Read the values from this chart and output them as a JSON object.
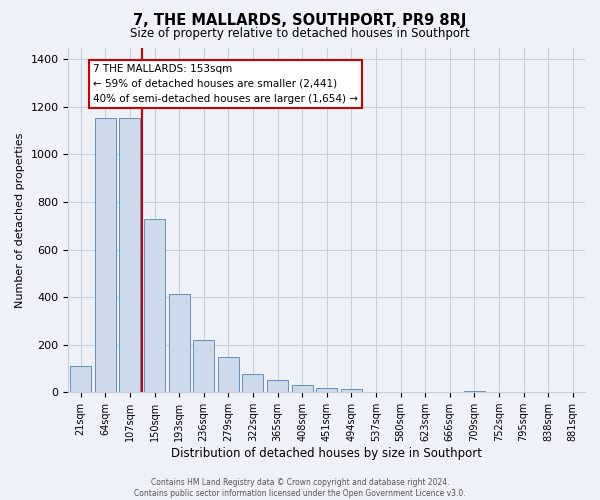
{
  "title": "7, THE MALLARDS, SOUTHPORT, PR9 8RJ",
  "subtitle": "Size of property relative to detached houses in Southport",
  "xlabel": "Distribution of detached houses by size in Southport",
  "ylabel": "Number of detached properties",
  "bar_labels": [
    "21sqm",
    "64sqm",
    "107sqm",
    "150sqm",
    "193sqm",
    "236sqm",
    "279sqm",
    "322sqm",
    "365sqm",
    "408sqm",
    "451sqm",
    "494sqm",
    "537sqm",
    "580sqm",
    "623sqm",
    "666sqm",
    "709sqm",
    "752sqm",
    "795sqm",
    "838sqm",
    "881sqm"
  ],
  "bar_values": [
    110,
    1155,
    1155,
    730,
    415,
    220,
    148,
    75,
    50,
    30,
    17,
    13,
    0,
    0,
    0,
    0,
    5,
    0,
    0,
    0,
    0
  ],
  "bar_color": "#ccdaea",
  "bar_edge_color": "#6090c0",
  "marker_index": 3,
  "marker_color": "#cc0000",
  "annotation_title": "7 THE MALLARDS: 153sqm",
  "annotation_line1": "← 59% of detached houses are smaller (2,441)",
  "annotation_line2": "40% of semi-detached houses are larger (1,654) →",
  "annotation_box_facecolor": "#ffffff",
  "annotation_box_edgecolor": "#cc0000",
  "footer_line1": "Contains HM Land Registry data © Crown copyright and database right 2024.",
  "footer_line2": "Contains public sector information licensed under the Open Government Licence v3.0.",
  "ylim": [
    0,
    1450
  ],
  "yticks": [
    0,
    200,
    400,
    600,
    800,
    1000,
    1200,
    1400
  ],
  "bg_color": "#eef2f8",
  "plot_bg_color": "#eef2f8",
  "grid_color": "#c5cfe0"
}
